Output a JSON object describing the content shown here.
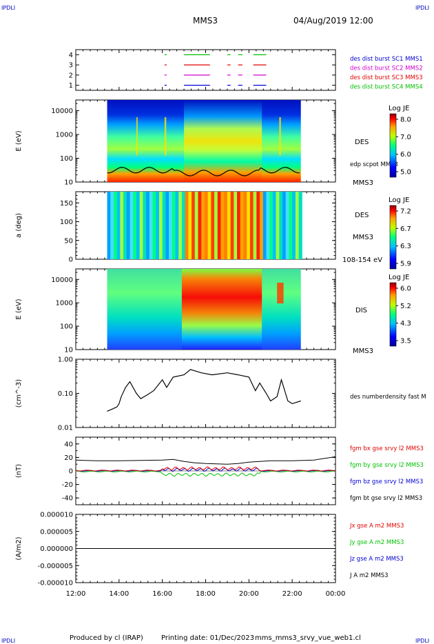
{
  "header": {
    "corner_label": "IPDLI",
    "spacecraft": "MMS3",
    "datetime": "04/Aug/2019 12:00"
  },
  "footer": {
    "produced_by": "Produced by cl (IRAP)",
    "printing_date": "Printing date: 01/Dec/2023",
    "filename": "mms_mms3_srvy_vue_web1.cl"
  },
  "time_axis": {
    "ticks": [
      "12:00",
      "14:00",
      "16:00",
      "18:00",
      "20:00",
      "22:00",
      "00:00"
    ],
    "range_hours": [
      12,
      24
    ]
  },
  "colors": {
    "red": "#e00000",
    "green": "#00c000",
    "blue": "#0000d0",
    "magenta": "#d000d0",
    "black": "#000000"
  },
  "chart_data": [
    {
      "id": "burst",
      "type": "line",
      "ylim": [
        0.5,
        4.5
      ],
      "yticks": [
        "1",
        "2",
        "3",
        "4"
      ],
      "legend": [
        {
          "text": "des dist burst SC1 MMS1",
          "color": "#0000d0"
        },
        {
          "text": "des dist burst SC2 MMS2",
          "color": "#d000d0"
        },
        {
          "text": "des dist burst SC3 MMS3",
          "color": "#e00000"
        },
        {
          "text": "des dist burst SC4 MMS4",
          "color": "#00c000"
        }
      ],
      "intervals_hours": [
        [
          16.1,
          16.2
        ],
        [
          17.0,
          18.2
        ],
        [
          19.0,
          19.15
        ],
        [
          19.5,
          19.7
        ],
        [
          20.2,
          20.8
        ]
      ]
    },
    {
      "id": "des_energy",
      "type": "heatmap",
      "ylabel": "E (eV)",
      "yticks": [
        "10",
        "100",
        "1000",
        "10000"
      ],
      "side_label": "DES",
      "side_label2": "MMS3",
      "overlay_label": "edp scpot MMS3",
      "colorbar": {
        "title": "Log JE",
        "ticks": [
          "8.0",
          "7.0",
          "6.0",
          "5.0"
        ],
        "range": [
          5.0,
          8.0
        ]
      }
    },
    {
      "id": "des_pitch",
      "type": "heatmap",
      "ylabel": "a (deg)",
      "yticks": [
        "0",
        "50",
        "100",
        "150"
      ],
      "side_label": "DES",
      "side_label2": "MMS3",
      "bottom_label": "108-154 eV",
      "colorbar": {
        "title": "Log JE",
        "ticks": [
          "7.2",
          "6.7",
          "6.3",
          "5.9"
        ],
        "range": [
          5.9,
          7.2
        ]
      }
    },
    {
      "id": "dis_energy",
      "type": "heatmap",
      "ylabel": "E (eV)",
      "yticks": [
        "10",
        "100",
        "1000",
        "10000"
      ],
      "side_label": "DIS",
      "side_label2": "MMS3",
      "colorbar": {
        "title": "Log JE",
        "ticks": [
          "6.0",
          "5.2",
          "4.3",
          "3.5"
        ],
        "range": [
          3.5,
          6.0
        ]
      }
    },
    {
      "id": "density",
      "type": "line",
      "ylabel": "(cm^-3)",
      "yticks": [
        "1.00",
        "0.10",
        "0.01"
      ],
      "legend": [
        {
          "text": "des numberdensity fast M",
          "color": "#000000"
        }
      ],
      "x": [
        13.45,
        13.7,
        13.9,
        14.0,
        14.1,
        14.3,
        14.5,
        14.8,
        15.0,
        15.3,
        15.6,
        16.0,
        16.2,
        16.5,
        17.0,
        17.3,
        17.8,
        18.3,
        19.0,
        19.5,
        20.0,
        20.3,
        20.5,
        20.8,
        21.0,
        21.3,
        21.5,
        21.8,
        22.0,
        22.4
      ],
      "y": [
        0.03,
        0.035,
        0.04,
        0.05,
        0.08,
        0.15,
        0.22,
        0.1,
        0.07,
        0.09,
        0.12,
        0.25,
        0.15,
        0.3,
        0.35,
        0.5,
        0.4,
        0.35,
        0.4,
        0.35,
        0.3,
        0.12,
        0.2,
        0.1,
        0.06,
        0.08,
        0.25,
        0.06,
        0.05,
        0.06
      ],
      "ylim": [
        0.01,
        1.0
      ]
    },
    {
      "id": "fgm",
      "type": "line",
      "ylabel": "(nT)",
      "yticks": [
        "40",
        "20",
        "0",
        "-20",
        "-40"
      ],
      "ylim": [
        -50,
        50
      ],
      "legend": [
        {
          "text": "fgm bx gse srvy l2 MMS3",
          "color": "#e00000"
        },
        {
          "text": "fgm by gse srvy l2 MMS3",
          "color": "#00c000"
        },
        {
          "text": "fgm bz gse srvy l2 MMS3",
          "color": "#0000d0"
        },
        {
          "text": "fgm bt gse srvy l2 MMS3",
          "color": "#000000"
        }
      ],
      "bt_x": [
        12.0,
        13.0,
        14.0,
        15.0,
        16.0,
        16.5,
        17.0,
        17.5,
        18.0,
        19.0,
        19.5,
        20.0,
        20.5,
        21.0,
        22.0,
        23.0,
        24.0
      ],
      "bt_y": [
        16,
        15,
        15,
        15.5,
        16,
        17,
        14,
        12,
        11,
        10,
        11,
        13,
        14,
        15,
        15,
        16,
        21
      ]
    },
    {
      "id": "current",
      "type": "line",
      "ylabel": "(A/m2)",
      "yticks": [
        "0.000010",
        "0.000005",
        "0.000000",
        "-0.000005",
        "-0.000010"
      ],
      "ylim": [
        -1e-05,
        1e-05
      ],
      "legend": [
        {
          "text": "Jx gse A m2 MMS3",
          "color": "#e00000"
        },
        {
          "text": "Jy gse A m2 MMS3",
          "color": "#00c000"
        },
        {
          "text": "Jz gse A m2 MMS3",
          "color": "#0000d0"
        },
        {
          "text": "J A m2 MMS3",
          "color": "#000000"
        }
      ]
    }
  ]
}
